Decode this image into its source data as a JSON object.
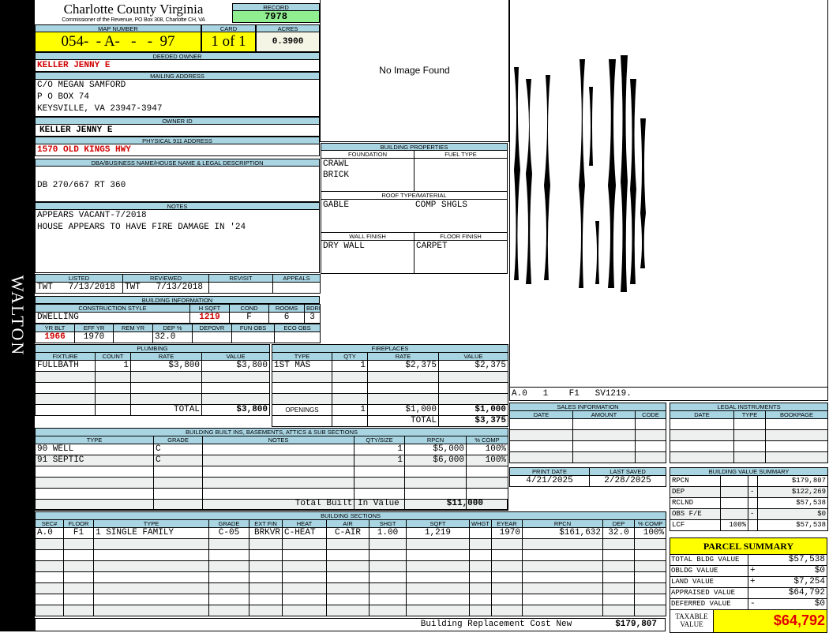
{
  "side_label": "WALTON",
  "header": {
    "title": "Charlotte County Virginia",
    "subtitle": "Commissioner of the Revenue, PO Box 308, Charlotte CH, VA",
    "record_label": "RECORD",
    "record": "7978"
  },
  "map": {
    "map_label": "MAP NUMBER",
    "map_number": "054-  - A-   -   -  97",
    "card_label": "CARD",
    "card": "1 of 1",
    "acres_label": "ACRES",
    "acres": "0.3900"
  },
  "owner": {
    "deeded_label": "DEEDED OWNER",
    "deeded": "KELLER JENNY E",
    "mailing_label": "MAILING ADDRESS",
    "mailing": [
      "C/O MEGAN SAMFORD",
      "P O BOX 74",
      "KEYSVILLE, VA 23947-3947"
    ],
    "owner_id_label": "OWNER ID",
    "owner_id": "KELLER JENNY E",
    "physical_label": "PHYSICAL 911 ADDRESS",
    "physical": "1570 OLD KINGS HWY"
  },
  "dba": {
    "label": "DBA/BUSINESS NAME/HOUSE NAME & LEGAL DESCRIPTION",
    "text": "DB 270/667 RT 360"
  },
  "notes": {
    "label": "NOTES",
    "lines": [
      "APPEARS VACANT-7/2018",
      "HOUSE APPEARS TO HAVE FIRE DAMAGE IN '24"
    ]
  },
  "image": {
    "text": "No Image Found"
  },
  "dates": {
    "columns": [
      "LISTED",
      "REVIEWED",
      "REVISIT",
      "APPEALS"
    ],
    "rows": [
      [
        "TWT   7/13/2018",
        "TWT   7/13/2018",
        "",
        ""
      ]
    ]
  },
  "building_info": {
    "title": "BUILDING INFORMATION",
    "columns": [
      "CONSTRUCTION STYLE",
      "H SQFT",
      "COND",
      "ROOMS",
      "BDRMS"
    ],
    "values": [
      "DWELLING",
      "1219",
      "F",
      "6",
      "3"
    ],
    "columns2": [
      "YR BLT",
      "EFF YR",
      "REM YR",
      "DEP %",
      "DEPOVR",
      "FUN OBS",
      "ECO OBS"
    ],
    "values2": [
      "1966",
      "1970",
      "",
      "32.0",
      "",
      "",
      ""
    ]
  },
  "building_properties": {
    "title": "BUILDING PROPERTIES",
    "foundation_label": "FOUNDATION",
    "foundation": [
      "CRAWL",
      "BRICK"
    ],
    "fuel_label": "FUEL TYPE",
    "fuel": "",
    "roof_label": "ROOF TYPE/MATERIAL",
    "roof_type": "GABLE",
    "roof_material": "COMP SHGLS",
    "wall_label": "WALL FINISH",
    "wall": "DRY WALL",
    "floor_label": "FLOOR FINISH",
    "floor": "CARPET"
  },
  "plumbing": {
    "title": "PLUMBING",
    "columns": [
      "FIXTURE",
      "COUNT",
      "RATE",
      "VALUE"
    ],
    "rows": [
      [
        "FULLBATH",
        "1",
        "$3,800",
        "$3,800"
      ]
    ],
    "footer": [
      [
        "",
        "",
        "TOTAL",
        "$3,800"
      ]
    ]
  },
  "fireplaces": {
    "title": "FIREPLACES",
    "columns": [
      "TYPE",
      "QTY",
      "RATE",
      "VALUE"
    ],
    "rows": [
      [
        "1ST MAS",
        "1",
        "$2,375",
        "$2,375"
      ]
    ],
    "footer": [
      [
        "OPENINGS",
        "1",
        "$1,000",
        "$1,000"
      ],
      [
        "",
        "",
        "TOTAL",
        "$3,375"
      ]
    ]
  },
  "built_ins": {
    "title": "BUILDING BUILT INS, BASEMENTS, ATTICS & SUB SECTIONS",
    "columns": [
      "TYPE",
      "GRADE",
      "NOTES",
      "QTY/SIZE",
      "RPCN",
      "% COMP"
    ],
    "rows": [
      [
        "90 WELL",
        "C",
        "",
        "1",
        "$5,000",
        "100%"
      ],
      [
        "91 SEPTIC",
        "C",
        "",
        "1",
        "$6,000",
        "100%"
      ]
    ],
    "total_label": "Total Built In Value",
    "total": "$11,000"
  },
  "sections": {
    "title": "BUILDING SECTIONS",
    "columns": [
      "SEC#",
      "FLOOR",
      "TYPE",
      "GRADE",
      "EXT FIN",
      "HEAT",
      "AIR",
      "SHGT",
      "SQFT",
      "WHGT",
      "EYEAR",
      "RPCN",
      "DEP",
      "% COMP"
    ],
    "rows": [
      [
        "A.0",
        "F1",
        "1 SINGLE FAMILY",
        "C-05",
        "BRKVR",
        "C-HEAT",
        "C-AIR",
        "1.00",
        "1,219",
        "",
        "1970",
        "$161,632",
        "32.0",
        "100%"
      ]
    ],
    "total_label": "Building Replacement Cost New",
    "total": "$179,807"
  },
  "sketch": {
    "label": "A.0   1    F1   SV1219."
  },
  "sales": {
    "title": "SALES INFORMATION",
    "columns": [
      "DATE",
      "AMOUNT",
      "CODE"
    ],
    "rows": []
  },
  "legal": {
    "title": "LEGAL INSTRUMENTS",
    "columns": [
      "DATE",
      "TYPE",
      "BOOKPAGE"
    ],
    "rows": []
  },
  "print": {
    "columns": [
      "PRINT DATE",
      "LAST SAVED"
    ],
    "rows": [
      [
        "4/21/2025",
        "2/28/2025"
      ]
    ]
  },
  "value_summary": {
    "title": "BUILDING VALUE SUMMARY",
    "rows": [
      [
        "RPCN",
        "",
        "",
        "$179,807"
      ],
      [
        "DEP",
        "",
        "-",
        "$122,269"
      ],
      [
        "RCLND",
        "",
        "",
        "$57,538"
      ],
      [
        "OBS F/E",
        "",
        "-",
        "$0"
      ],
      [
        "LCF",
        "100%",
        "",
        "$57,538"
      ]
    ]
  },
  "parcel": {
    "title": "PARCEL SUMMARY",
    "rows": [
      [
        "TOTAL BLDG VALUE",
        "",
        "$57,538"
      ],
      [
        "OBLDG VALUE",
        "+",
        "$0"
      ],
      [
        "LAND VALUE",
        "+",
        "$7,254"
      ],
      [
        "APPRAISED VALUE",
        "",
        "$64,792"
      ],
      [
        "DEFERRED VALUE",
        "-",
        "$0"
      ]
    ],
    "taxable_label": "TAXABLE VALUE",
    "taxable": "$64,792"
  },
  "colors": {
    "header_blue": "#a9d5e3",
    "highlight_yellow": "#ffff00",
    "record_green": "#90ee90",
    "alert_red": "#d00000"
  }
}
